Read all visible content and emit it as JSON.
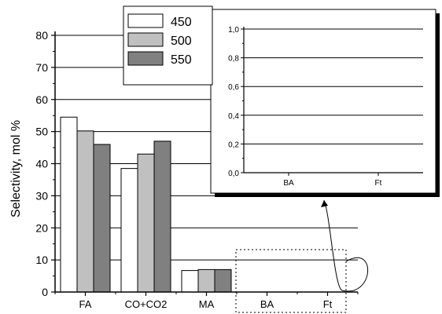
{
  "chart_data": [
    {
      "type": "bar",
      "xlabel": "",
      "ylabel": "Selectivity, mol %",
      "ylim": [
        0,
        80
      ],
      "yticks": [
        "0",
        "10",
        "20",
        "30",
        "40",
        "50",
        "60",
        "70",
        "80"
      ],
      "categories": [
        "FA",
        "CO+CO2",
        "MA",
        "BA",
        "Ft"
      ],
      "grid": true,
      "legend_position": "top-center",
      "series": [
        {
          "name": "450",
          "color": "#ffffff",
          "values": [
            54.5,
            38.5,
            6.7,
            0,
            0
          ]
        },
        {
          "name": "500",
          "color": "#c0c0c0",
          "values": [
            50.2,
            43.0,
            7.0,
            0,
            0
          ]
        },
        {
          "name": "550",
          "color": "#808080",
          "values": [
            46.0,
            47.0,
            7.0,
            0,
            0
          ]
        }
      ]
    },
    {
      "type": "bar",
      "role": "inset",
      "xlabel": "",
      "ylabel": "",
      "ylim": [
        0,
        1
      ],
      "yticks": [
        "0,0",
        "0,2",
        "0,4",
        "0,6",
        "0,8",
        "1,0"
      ],
      "categories": [
        "BA",
        "Ft"
      ],
      "grid": true,
      "series": [
        {
          "name": "450",
          "values": [
            0,
            0
          ]
        },
        {
          "name": "500",
          "values": [
            0,
            0
          ]
        },
        {
          "name": "550",
          "values": [
            0,
            0
          ]
        }
      ]
    }
  ]
}
